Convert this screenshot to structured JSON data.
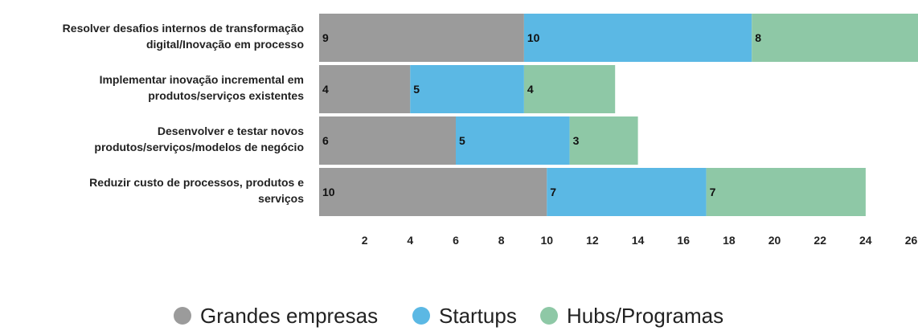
{
  "chart_data": {
    "type": "bar",
    "orientation": "horizontal",
    "stacked": true,
    "categories": [
      [
        "Resolver desafios internos de transformação",
        "digital/Inovação em processo"
      ],
      [
        "Implementar inovação incremental em",
        "produtos/serviços existentes"
      ],
      [
        "Desenvolver e testar novos",
        "produtos/serviços/modelos de negócio"
      ],
      [
        "Reduzir custo de processos, produtos e",
        "serviços"
      ]
    ],
    "series": [
      {
        "name": "Grandes empresas",
        "color": "#9b9b9b",
        "values": [
          9,
          4,
          6,
          10
        ]
      },
      {
        "name": "Startups",
        "color": "#5bb8e4",
        "values": [
          10,
          5,
          5,
          7
        ]
      },
      {
        "name": "Hubs/Programas",
        "color": "#8ec8a6",
        "values": [
          8,
          4,
          3,
          7
        ]
      }
    ],
    "xticks": [
      2,
      4,
      6,
      8,
      10,
      12,
      14,
      16,
      18,
      20,
      22,
      24,
      26
    ],
    "xlim": [
      0,
      26.3
    ],
    "grid": false,
    "legend_position": "bottom-center"
  }
}
